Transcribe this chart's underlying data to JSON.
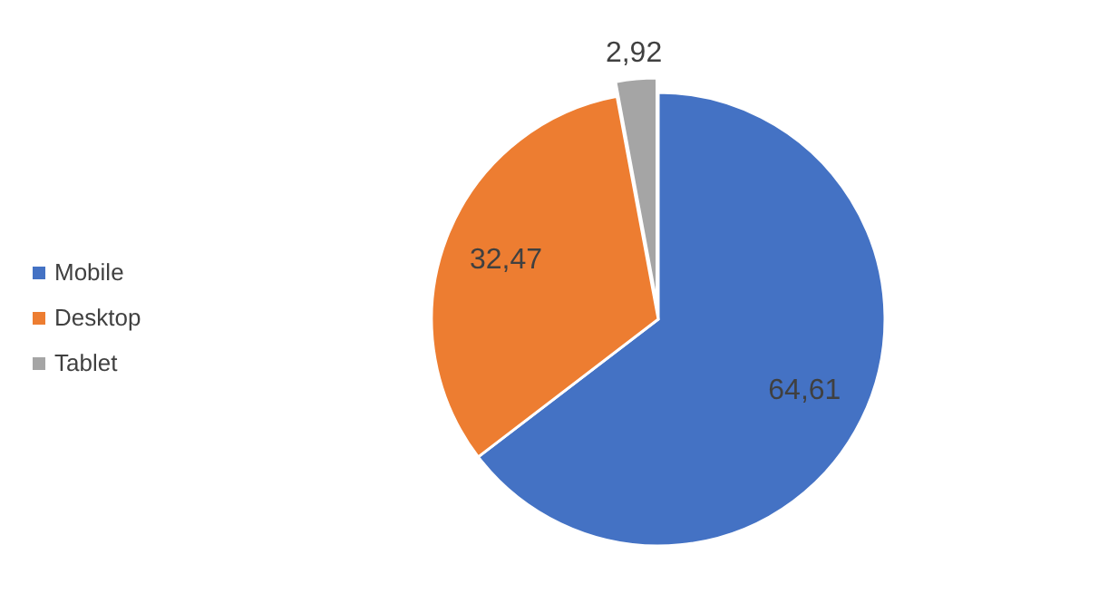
{
  "chart_data": {
    "type": "pie",
    "categories": [
      "Mobile",
      "Desktop",
      "Tablet"
    ],
    "values": [
      64.61,
      32.47,
      2.92
    ],
    "colors": [
      "#4472c4",
      "#ed7d31",
      "#a5a5a5"
    ],
    "value_labels": [
      "64,61",
      "32,47",
      "2,92"
    ],
    "legend": "left"
  }
}
